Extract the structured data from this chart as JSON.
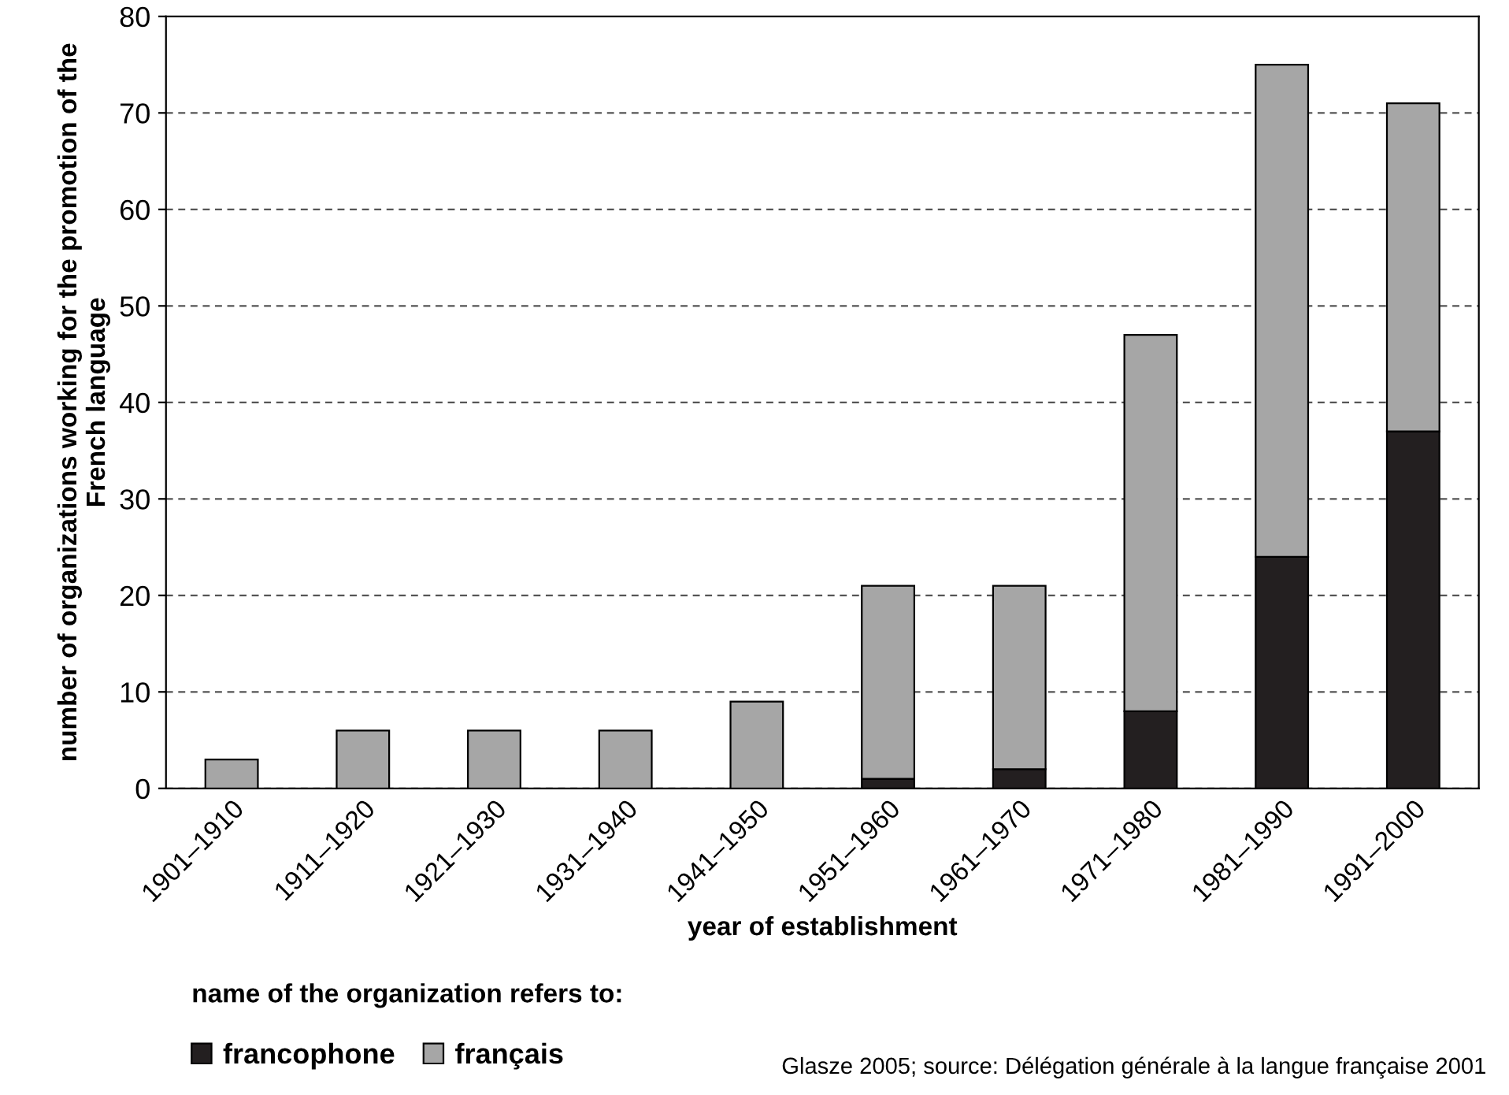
{
  "chart_data": {
    "type": "bar",
    "stacked": true,
    "categories": [
      "1901–1910",
      "1911–1920",
      "1921–1930",
      "1931–1940",
      "1941–1950",
      "1951–1960",
      "1961–1970",
      "1971–1980",
      "1981–1990",
      "1991–2000"
    ],
    "series": [
      {
        "name": "francophone",
        "color": "#231f20",
        "values": [
          0,
          0,
          0,
          0,
          0,
          1,
          2,
          8,
          24,
          37
        ]
      },
      {
        "name": "français",
        "color": "#a6a6a6",
        "values": [
          3,
          6,
          6,
          6,
          9,
          20,
          19,
          39,
          51,
          34
        ]
      }
    ],
    "xlabel": "year of establishment",
    "ylabel": "number of organizations working for the promotion of the French language",
    "legend_title": "name of the organization refers to:",
    "legend": "bottom",
    "ylim": [
      0,
      80
    ],
    "yticks": [
      0,
      10,
      20,
      30,
      40,
      50,
      60,
      70,
      80
    ],
    "grid": "y",
    "annotations": [
      "Glasze 2005; source: Délégation générale à la langue française 2001"
    ]
  }
}
